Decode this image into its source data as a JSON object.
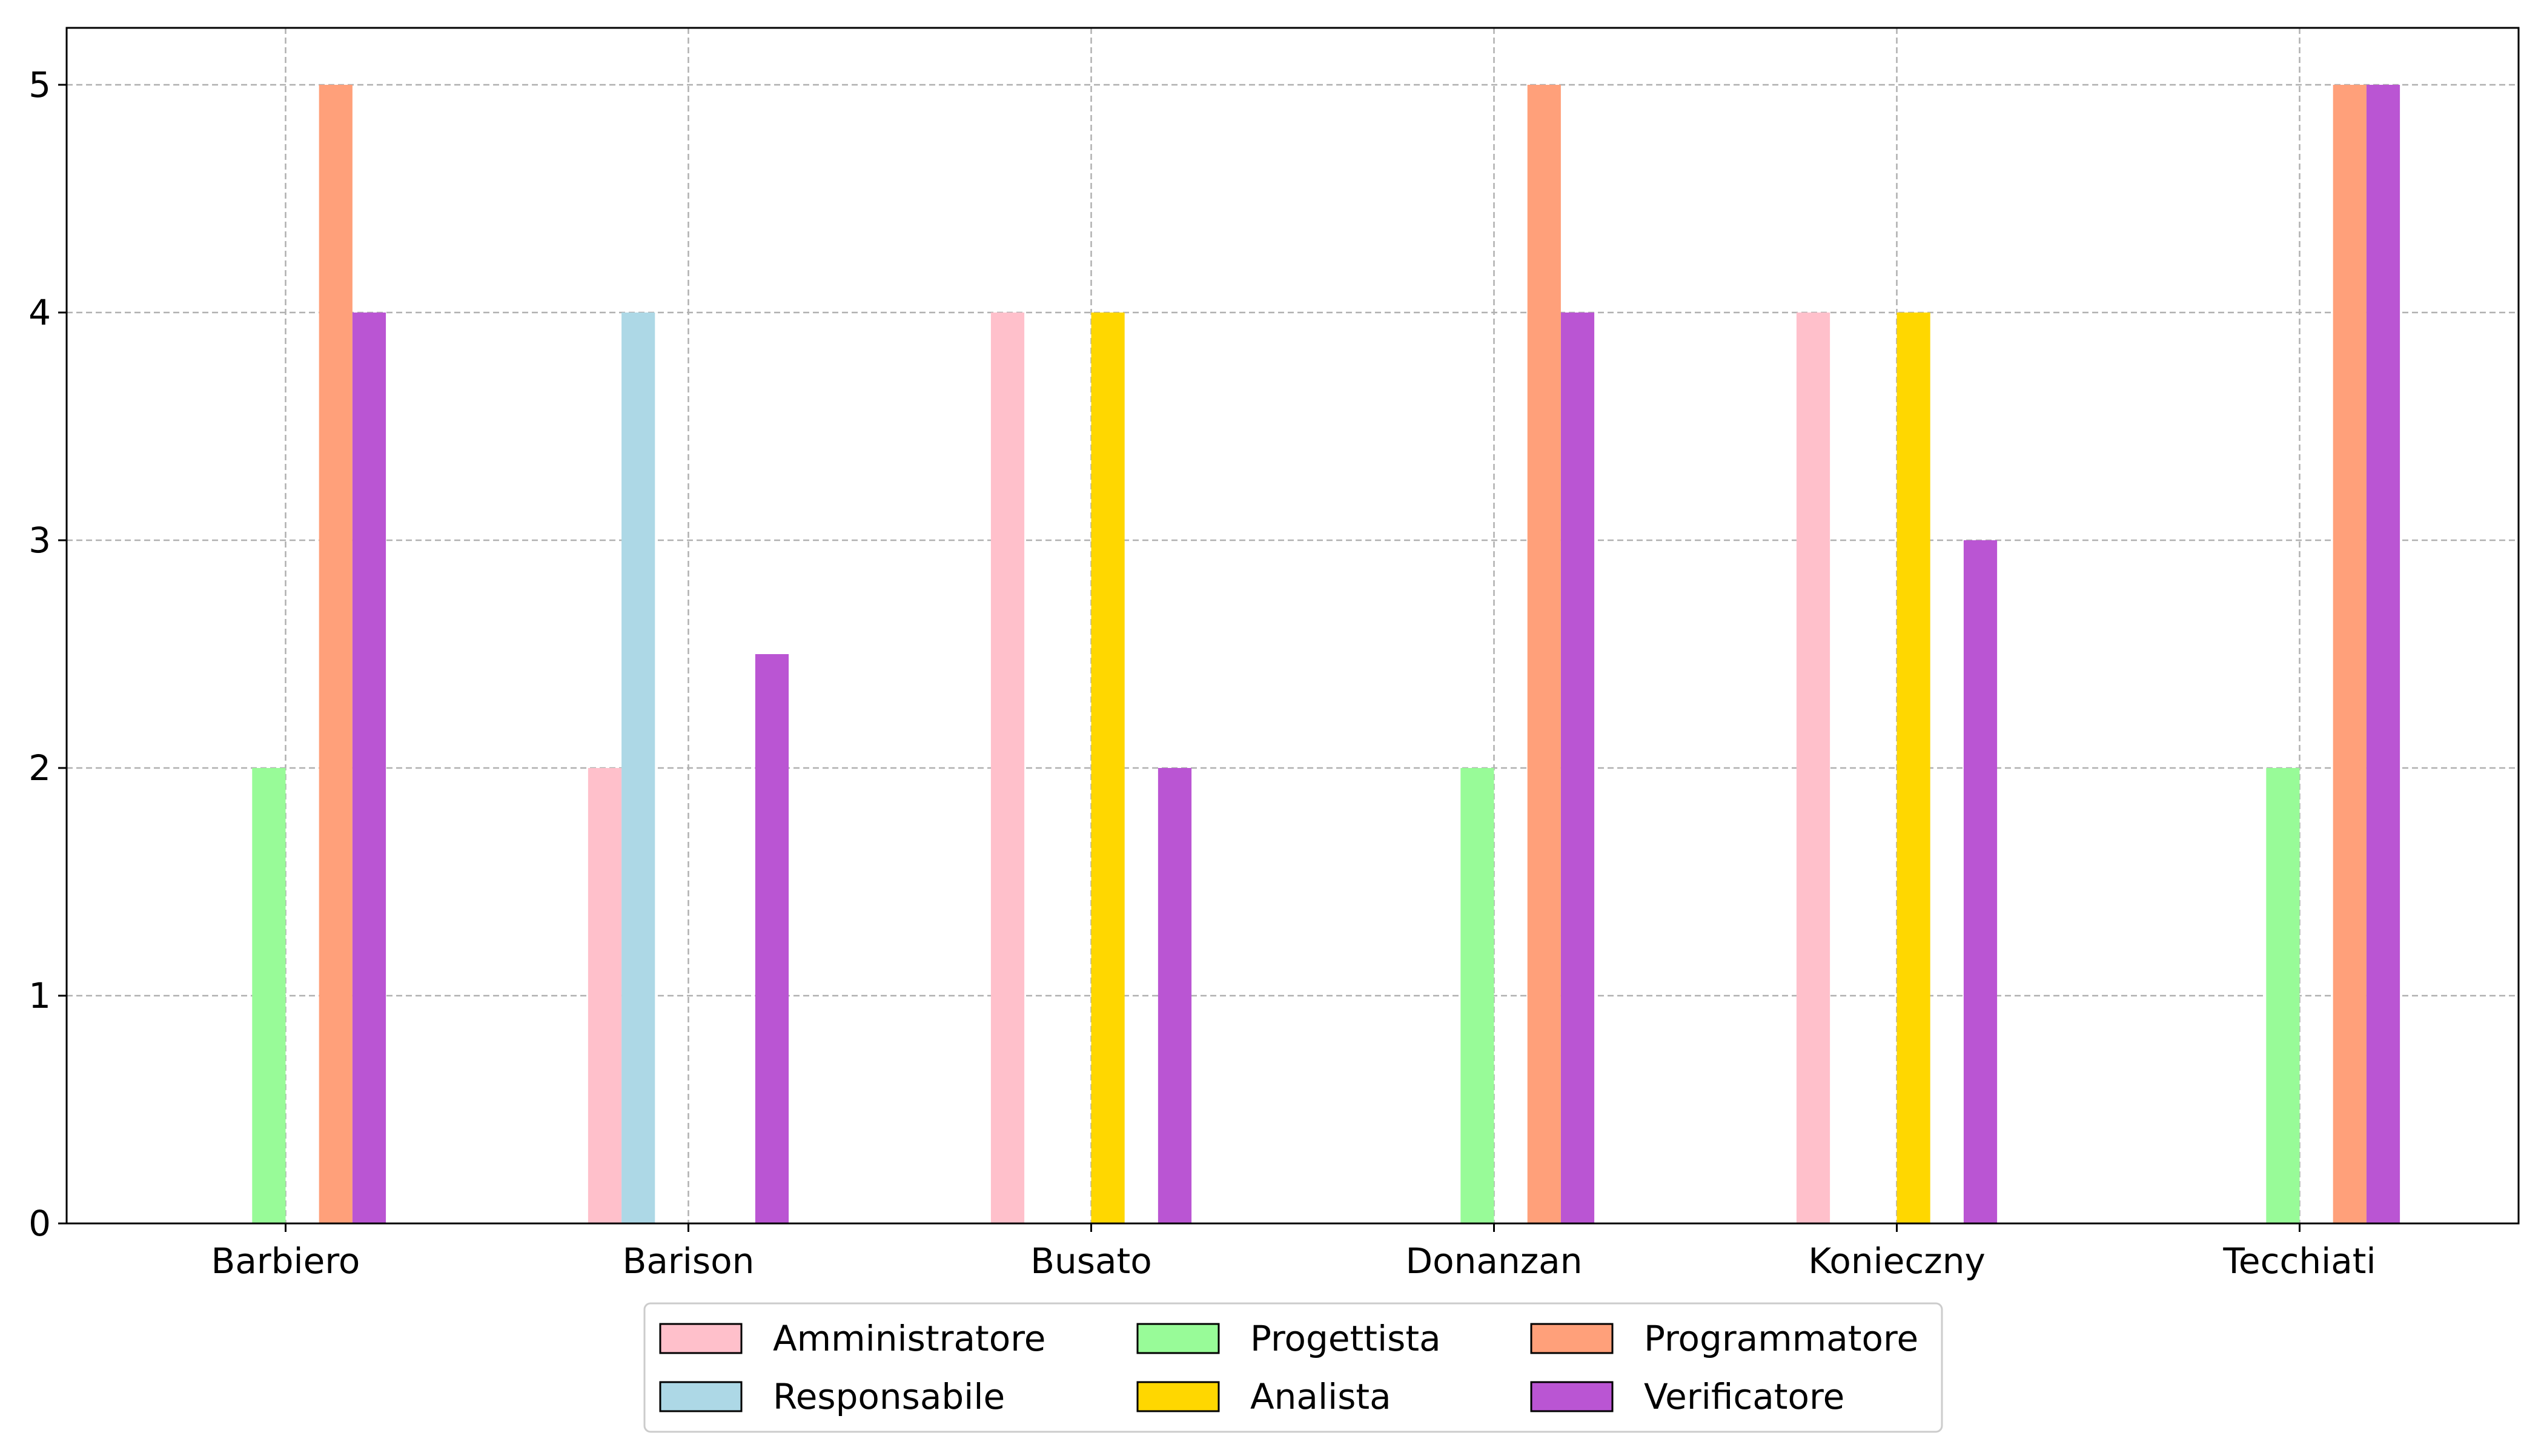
{
  "chart_data": {
    "type": "bar",
    "categories": [
      "Barbiero",
      "Barison",
      "Busato",
      "Donanzan",
      "Konieczny",
      "Tecchiati"
    ],
    "series": [
      {
        "name": "Amministratore",
        "color": "#ffc0cb",
        "values": [
          0,
          2,
          4,
          0,
          4,
          0
        ]
      },
      {
        "name": "Responsabile",
        "color": "#add8e6",
        "values": [
          0,
          4,
          0,
          0,
          0,
          0
        ]
      },
      {
        "name": "Progettista",
        "color": "#98fb98",
        "values": [
          2,
          0,
          0,
          2,
          0,
          2
        ]
      },
      {
        "name": "Analista",
        "color": "#ffd700",
        "values": [
          0,
          0,
          4,
          0,
          4,
          0
        ]
      },
      {
        "name": "Programmatore",
        "color": "#ffa07a",
        "values": [
          5,
          0,
          0,
          5,
          0,
          5
        ]
      },
      {
        "name": "Verificatore",
        "color": "#ba55d3",
        "values": [
          4,
          2.5,
          2,
          4,
          3,
          5
        ]
      }
    ],
    "yticks": [
      0,
      1,
      2,
      3,
      4,
      5
    ],
    "ylim": [
      0,
      5.25
    ],
    "title": "",
    "xlabel": "",
    "ylabel": "",
    "grid": true,
    "grid_style": "dashed",
    "legend_position": "bottom-center",
    "legend_columns": 3
  }
}
